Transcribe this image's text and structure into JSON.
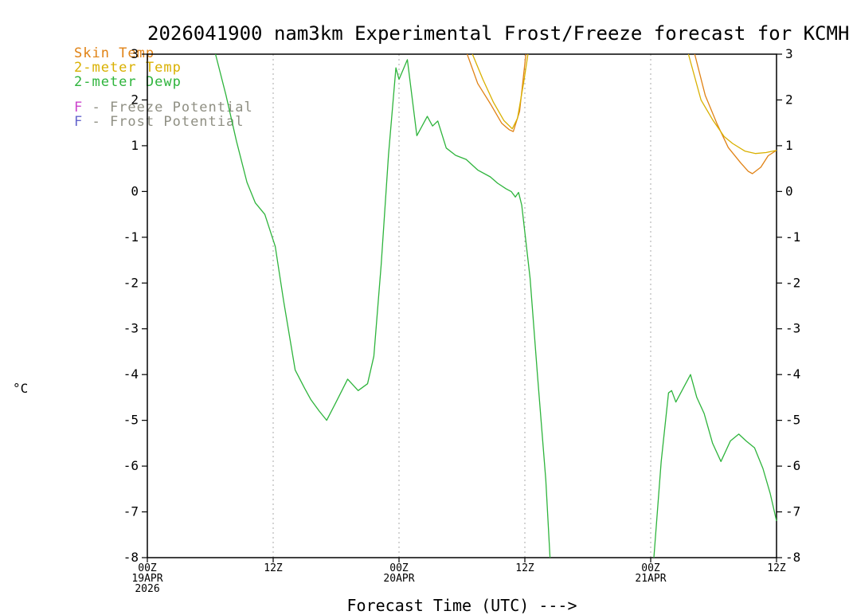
{
  "title": "2026041900 nam3km Experimental Frost/Freeze forecast for KCMH",
  "ylabel": "°C",
  "xlabel": "Forecast Time (UTC) --->",
  "colors": {
    "skin_temp": "#e08214",
    "temp_2m": "#d9b000",
    "dewp_2m": "#2eb43c",
    "freeze": "#cc44cc",
    "frost": "#6666cc",
    "legend_text": "#8f8f83",
    "grid": "#aaaaaa",
    "axis": "#000000"
  },
  "legend": {
    "items": [
      {
        "id": "skin-temp",
        "label": "Skin Temp",
        "color": "#e08214",
        "gap_before": false
      },
      {
        "id": "temp-2m",
        "label": "2-meter Temp",
        "color": "#d9b000",
        "gap_before": false
      },
      {
        "id": "dewp-2m",
        "label": "2-meter Dewp",
        "color": "#2eb43c",
        "gap_before": false
      },
      {
        "id": "freeze-potential",
        "prefix": "F",
        "prefix_color": "#cc44cc",
        "label": "- Freeze Potential",
        "color": "#8f8f83",
        "gap_before": true
      },
      {
        "id": "frost-potential",
        "prefix": "F",
        "prefix_color": "#6666cc",
        "label": "- Frost Potential",
        "color": "#8f8f83",
        "gap_before": false
      }
    ]
  },
  "chart_data": {
    "type": "line",
    "title": "2026041900 nam3km Experimental Frost/Freeze forecast for KCMH",
    "xlabel": "Forecast Time (UTC) --->",
    "ylabel": "°C",
    "xlim": [
      0,
      60
    ],
    "ylim": [
      -8,
      3
    ],
    "grid": "vertical-dotted",
    "legend_position": "top-left",
    "yticks": [
      3,
      2,
      1,
      0,
      -1,
      -2,
      -3,
      -4,
      -5,
      -6,
      -7,
      -8
    ],
    "xticks": [
      {
        "hour": 0,
        "lines": [
          "00Z",
          "19APR",
          "2026"
        ]
      },
      {
        "hour": 12,
        "lines": [
          "12Z"
        ]
      },
      {
        "hour": 24,
        "lines": [
          "00Z",
          "20APR"
        ]
      },
      {
        "hour": 36,
        "lines": [
          "12Z"
        ]
      },
      {
        "hour": 48,
        "lines": [
          "00Z",
          "21APR"
        ]
      },
      {
        "hour": 60,
        "lines": [
          "12Z"
        ]
      }
    ],
    "series": [
      {
        "id": "skin-temp",
        "name": "Skin Temp",
        "color": "#e08214",
        "units": "°C",
        "segments": [
          [
            [
              30.5,
              3.0
            ],
            [
              31.5,
              2.36
            ],
            [
              32.7,
              1.92
            ],
            [
              33.8,
              1.49
            ],
            [
              34.5,
              1.35
            ],
            [
              34.9,
              1.31
            ],
            [
              35.5,
              1.75
            ],
            [
              36.1,
              3.0
            ]
          ],
          [
            [
              52.2,
              3.0
            ],
            [
              53.2,
              2.1
            ],
            [
              54.3,
              1.49
            ],
            [
              55.4,
              0.96
            ],
            [
              56.6,
              0.62
            ],
            [
              57.3,
              0.44
            ],
            [
              57.7,
              0.39
            ],
            [
              58.5,
              0.53
            ],
            [
              59.2,
              0.78
            ],
            [
              60,
              0.9
            ]
          ]
        ]
      },
      {
        "id": "temp-2m",
        "name": "2-meter Temp",
        "color": "#d9b000",
        "units": "°C",
        "segments": [
          [
            [
              31.0,
              3.0
            ],
            [
              32.0,
              2.45
            ],
            [
              33.0,
              1.95
            ],
            [
              34.0,
              1.55
            ],
            [
              34.8,
              1.37
            ],
            [
              35.3,
              1.6
            ],
            [
              35.9,
              2.4
            ],
            [
              36.3,
              3.0
            ]
          ],
          [
            [
              51.6,
              3.0
            ],
            [
              52.8,
              2.0
            ],
            [
              53.9,
              1.57
            ],
            [
              55.0,
              1.2
            ],
            [
              55.8,
              1.05
            ],
            [
              57.0,
              0.88
            ],
            [
              58.0,
              0.83
            ],
            [
              59.0,
              0.85
            ],
            [
              60,
              0.9
            ]
          ]
        ]
      },
      {
        "id": "dewp-2m",
        "name": "2-meter Dewp",
        "color": "#2eb43c",
        "units": "°C",
        "segments": [
          [
            [
              6.5,
              3.0
            ],
            [
              7.5,
              2.1
            ],
            [
              8.5,
              1.1
            ],
            [
              9.5,
              0.2
            ],
            [
              10.3,
              -0.25
            ],
            [
              11.2,
              -0.5
            ],
            [
              12.2,
              -1.2
            ],
            [
              13.0,
              -2.4
            ],
            [
              14.1,
              -3.9
            ],
            [
              15.0,
              -4.3
            ],
            [
              15.6,
              -4.55
            ],
            [
              16.4,
              -4.8
            ],
            [
              17.1,
              -5.0
            ],
            [
              18.0,
              -4.6
            ],
            [
              19.1,
              -4.1
            ],
            [
              20.1,
              -4.35
            ],
            [
              21.0,
              -4.2
            ],
            [
              21.6,
              -3.6
            ],
            [
              22.3,
              -1.6
            ],
            [
              23.0,
              0.8
            ],
            [
              23.7,
              2.7
            ],
            [
              24.0,
              2.45
            ],
            [
              24.8,
              2.88
            ],
            [
              25.7,
              1.22
            ],
            [
              26.7,
              1.64
            ],
            [
              27.2,
              1.43
            ],
            [
              27.7,
              1.54
            ],
            [
              28.5,
              0.95
            ],
            [
              29.4,
              0.79
            ],
            [
              30.4,
              0.7
            ],
            [
              31.5,
              0.47
            ],
            [
              32.7,
              0.32
            ],
            [
              33.4,
              0.18
            ],
            [
              34.2,
              0.06
            ],
            [
              34.7,
              0.0
            ],
            [
              35.1,
              -0.12
            ],
            [
              35.4,
              -0.02
            ],
            [
              35.7,
              -0.3
            ],
            [
              36.5,
              -1.9
            ],
            [
              37.2,
              -4.0
            ],
            [
              38.0,
              -6.3
            ],
            [
              38.4,
              -8.0
            ]
          ],
          [
            [
              48.3,
              -8.0
            ],
            [
              49.0,
              -5.9
            ],
            [
              49.7,
              -4.4
            ],
            [
              50.0,
              -4.35
            ],
            [
              50.4,
              -4.6
            ],
            [
              51.1,
              -4.3
            ],
            [
              51.8,
              -4.0
            ],
            [
              52.4,
              -4.5
            ],
            [
              53.1,
              -4.85
            ],
            [
              53.9,
              -5.5
            ],
            [
              54.7,
              -5.9
            ],
            [
              55.6,
              -5.45
            ],
            [
              56.4,
              -5.3
            ],
            [
              57.1,
              -5.45
            ],
            [
              57.9,
              -5.6
            ],
            [
              58.7,
              -6.05
            ],
            [
              59.4,
              -6.6
            ],
            [
              60,
              -7.2
            ]
          ]
        ]
      }
    ],
    "potentials": {
      "freeze": {
        "marker": "F",
        "color": "#cc44cc",
        "events": []
      },
      "frost": {
        "marker": "F",
        "color": "#6666cc",
        "events": []
      }
    }
  }
}
